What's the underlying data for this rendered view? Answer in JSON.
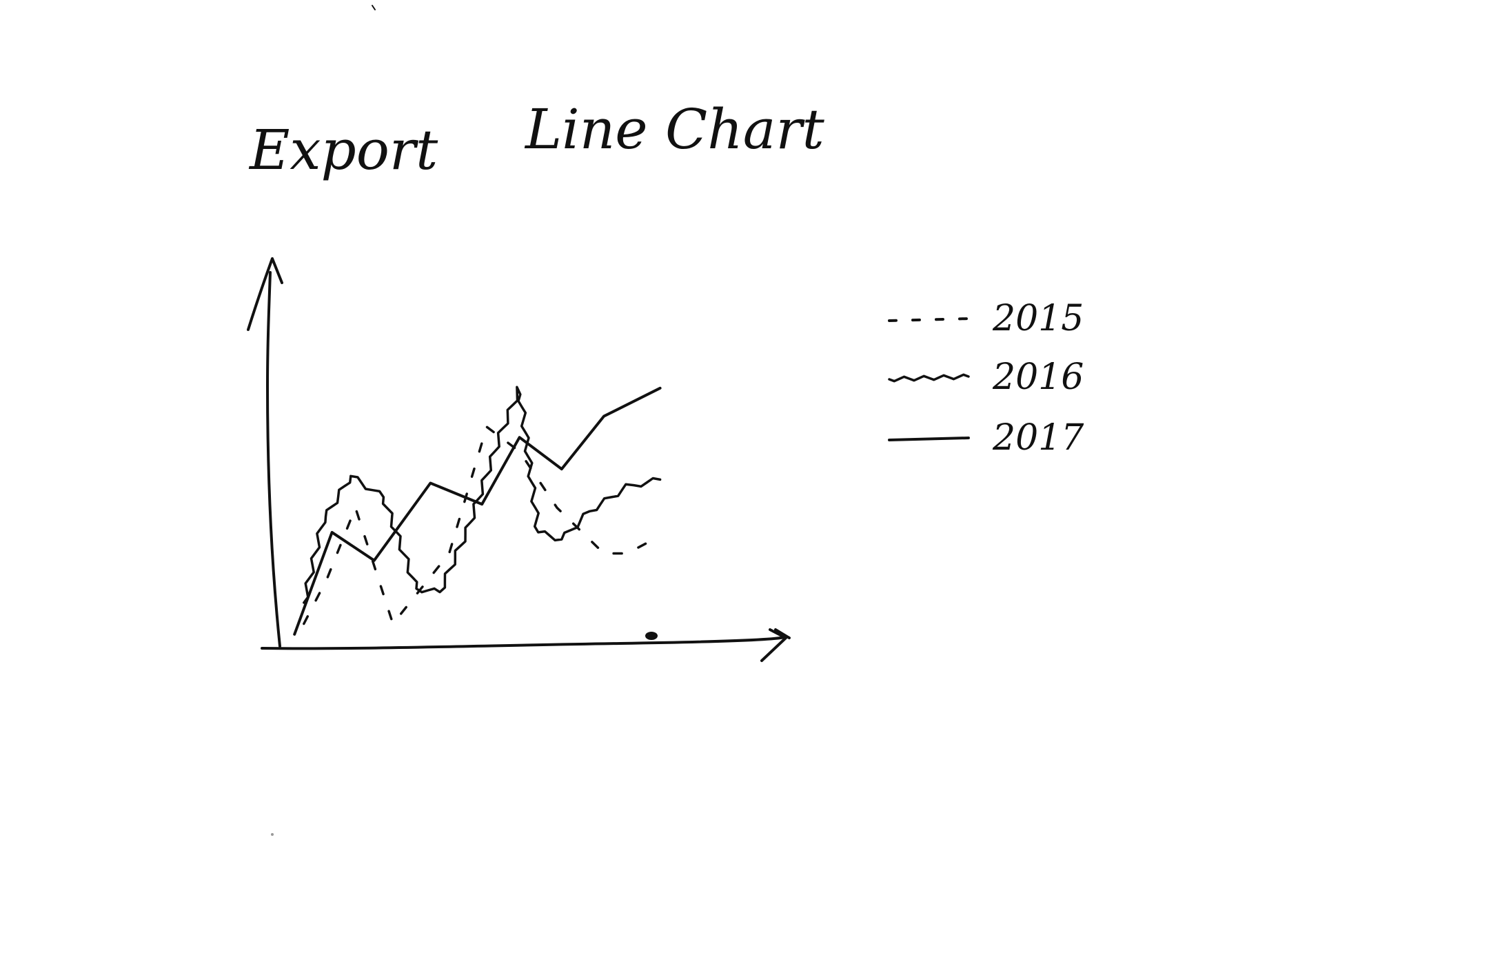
{
  "chart_data": {
    "type": "line",
    "title": "Line Chart",
    "ylabel": "Export",
    "xlabel": "",
    "ylim": [
      0,
      10
    ],
    "xlim": [
      0,
      10
    ],
    "grid": false,
    "legend_position": "right",
    "series": [
      {
        "name": "2015",
        "line_style": "dotted",
        "x": [
          0.6,
          1.1,
          1.7,
          2.5,
          3.7,
          4.5,
          5.2,
          6.0,
          7.0,
          7.5,
          8.2
        ],
        "y": [
          0.5,
          1.8,
          3.8,
          0.5,
          2.5,
          6.1,
          5.4,
          3.8,
          2.5,
          2.5,
          3.0
        ]
      },
      {
        "name": "2016",
        "line_style": "wavy",
        "x": [
          0.6,
          1.0,
          1.6,
          2.3,
          3.0,
          3.5,
          4.1,
          4.8,
          5.2,
          5.6,
          6.1,
          6.7,
          7.5,
          8.2
        ],
        "y": [
          1.1,
          3.4,
          4.7,
          4.1,
          1.5,
          1.4,
          3.2,
          5.9,
          7.2,
          3.1,
          2.9,
          3.7,
          4.4,
          4.6
        ]
      },
      {
        "name": "2017",
        "line_style": "solid",
        "x": [
          0.4,
          1.2,
          2.1,
          3.3,
          4.4,
          5.2,
          6.1,
          7.0,
          8.2
        ],
        "y": [
          0.2,
          3.1,
          2.3,
          4.5,
          3.9,
          5.8,
          4.9,
          6.4,
          7.2
        ]
      }
    ]
  }
}
